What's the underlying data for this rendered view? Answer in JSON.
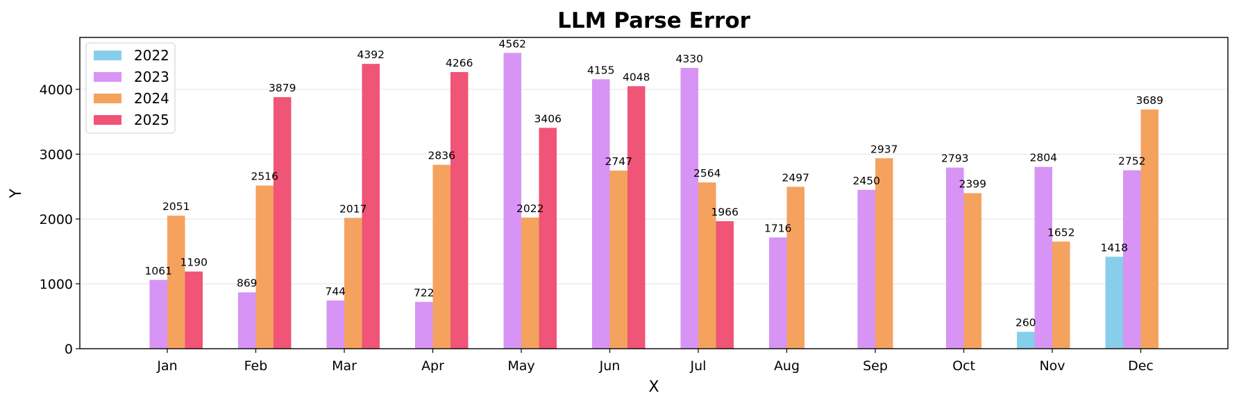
{
  "chart_data": {
    "type": "bar",
    "title": "LLM Parse Error",
    "xlabel": "X",
    "ylabel": "Y",
    "ylim": [
      0,
      4800
    ],
    "yticks": [
      0,
      1000,
      2000,
      3000,
      4000
    ],
    "grid": "y",
    "legend_position": "top-left",
    "categories": [
      "Jan",
      "Feb",
      "Mar",
      "Apr",
      "May",
      "Jun",
      "Jul",
      "Aug",
      "Sep",
      "Oct",
      "Nov",
      "Dec"
    ],
    "series": [
      {
        "name": "2022",
        "color": "#87CEEB",
        "values": [
          null,
          null,
          null,
          null,
          null,
          null,
          null,
          null,
          null,
          null,
          260,
          1418
        ]
      },
      {
        "name": "2023",
        "color": "#D794F5",
        "values": [
          1061,
          869,
          744,
          722,
          4562,
          4155,
          4330,
          1716,
          2450,
          2793,
          2804,
          2752
        ]
      },
      {
        "name": "2024",
        "color": "#F5A25F",
        "values": [
          2051,
          2516,
          2017,
          2836,
          2022,
          2747,
          2564,
          2497,
          2937,
          2399,
          1652,
          3689
        ]
      },
      {
        "name": "2025",
        "color": "#F05476",
        "values": [
          1190,
          3879,
          4392,
          4266,
          3406,
          4048,
          1966,
          null,
          null,
          null,
          null,
          null
        ]
      }
    ]
  }
}
